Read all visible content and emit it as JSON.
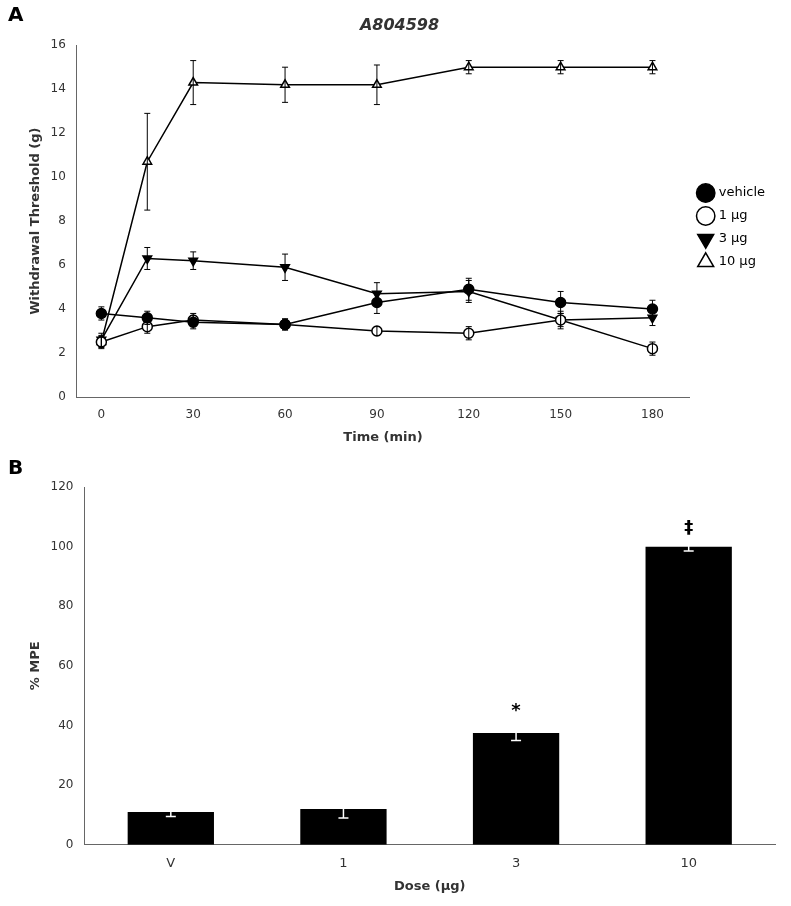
{
  "chart_data": [
    {
      "type": "line",
      "title": "A804598",
      "xlabel": "Time (min)",
      "ylabel": "Withdrawal Threshold (g)",
      "x": [
        0,
        15,
        30,
        60,
        90,
        120,
        150,
        180
      ],
      "series": [
        {
          "name": "vehicle",
          "color": "#000000",
          "marker": "circle",
          "values": [
            3.8,
            3.6,
            3.4,
            3.3,
            4.3,
            4.9,
            4.3,
            4.0
          ],
          "yerr": [
            0.3,
            0.3,
            0.3,
            0.25,
            0.5,
            0.5,
            0.5,
            0.4
          ]
        },
        {
          "name": "1 μg",
          "color": "#000000",
          "marker": "open_circle",
          "values": [
            2.5,
            3.2,
            3.5,
            3.3,
            3.0,
            2.9,
            3.5,
            2.2
          ],
          "yerr": [
            0.25,
            0.3,
            0.3,
            0.25,
            0.2,
            0.3,
            0.3,
            0.3
          ]
        },
        {
          "name": "3 μg",
          "color": "#000000",
          "marker": "down_triangle",
          "values": [
            2.6,
            6.3,
            6.2,
            5.9,
            4.7,
            4.8,
            3.5,
            3.6
          ],
          "yerr": [
            0.3,
            0.5,
            0.4,
            0.6,
            0.5,
            0.5,
            0.4,
            0.35
          ]
        },
        {
          "name": "10 μg",
          "color": "#000000",
          "marker": "open_triangle",
          "values": [
            2.5,
            10.7,
            14.3,
            14.2,
            14.2,
            15.0,
            15.0,
            15.0
          ],
          "yerr": [
            0.3,
            2.2,
            1.0,
            0.8,
            0.9,
            0.3,
            0.3,
            0.3
          ]
        }
      ],
      "xlim": [
        -8,
        192
      ],
      "xticks": [
        0,
        30,
        60,
        90,
        120,
        150,
        180
      ],
      "ylim": [
        0,
        16
      ],
      "yticks": [
        0,
        2,
        4,
        6,
        8,
        10,
        12,
        14,
        16
      ],
      "grid": false,
      "legend": "right",
      "annotations": [
        {
          "text": "A"
        }
      ]
    },
    {
      "type": "bar",
      "xlabel": "Dose (μg)",
      "ylabel": "% MPE",
      "categories": [
        "V",
        "1",
        "3",
        "10"
      ],
      "values": [
        11.0,
        12.0,
        37.5,
        100.0
      ],
      "yerr": [
        1.5,
        3.0,
        2.5,
        1.5
      ],
      "color": "#000000",
      "ylim": [
        0,
        120
      ],
      "yticks": [
        0,
        20,
        40,
        60,
        80,
        100,
        120
      ],
      "grid": false,
      "annotations": [
        {
          "text": "B"
        },
        {
          "category": "3",
          "text": "*"
        },
        {
          "category": "10",
          "text": "‡"
        }
      ]
    }
  ]
}
